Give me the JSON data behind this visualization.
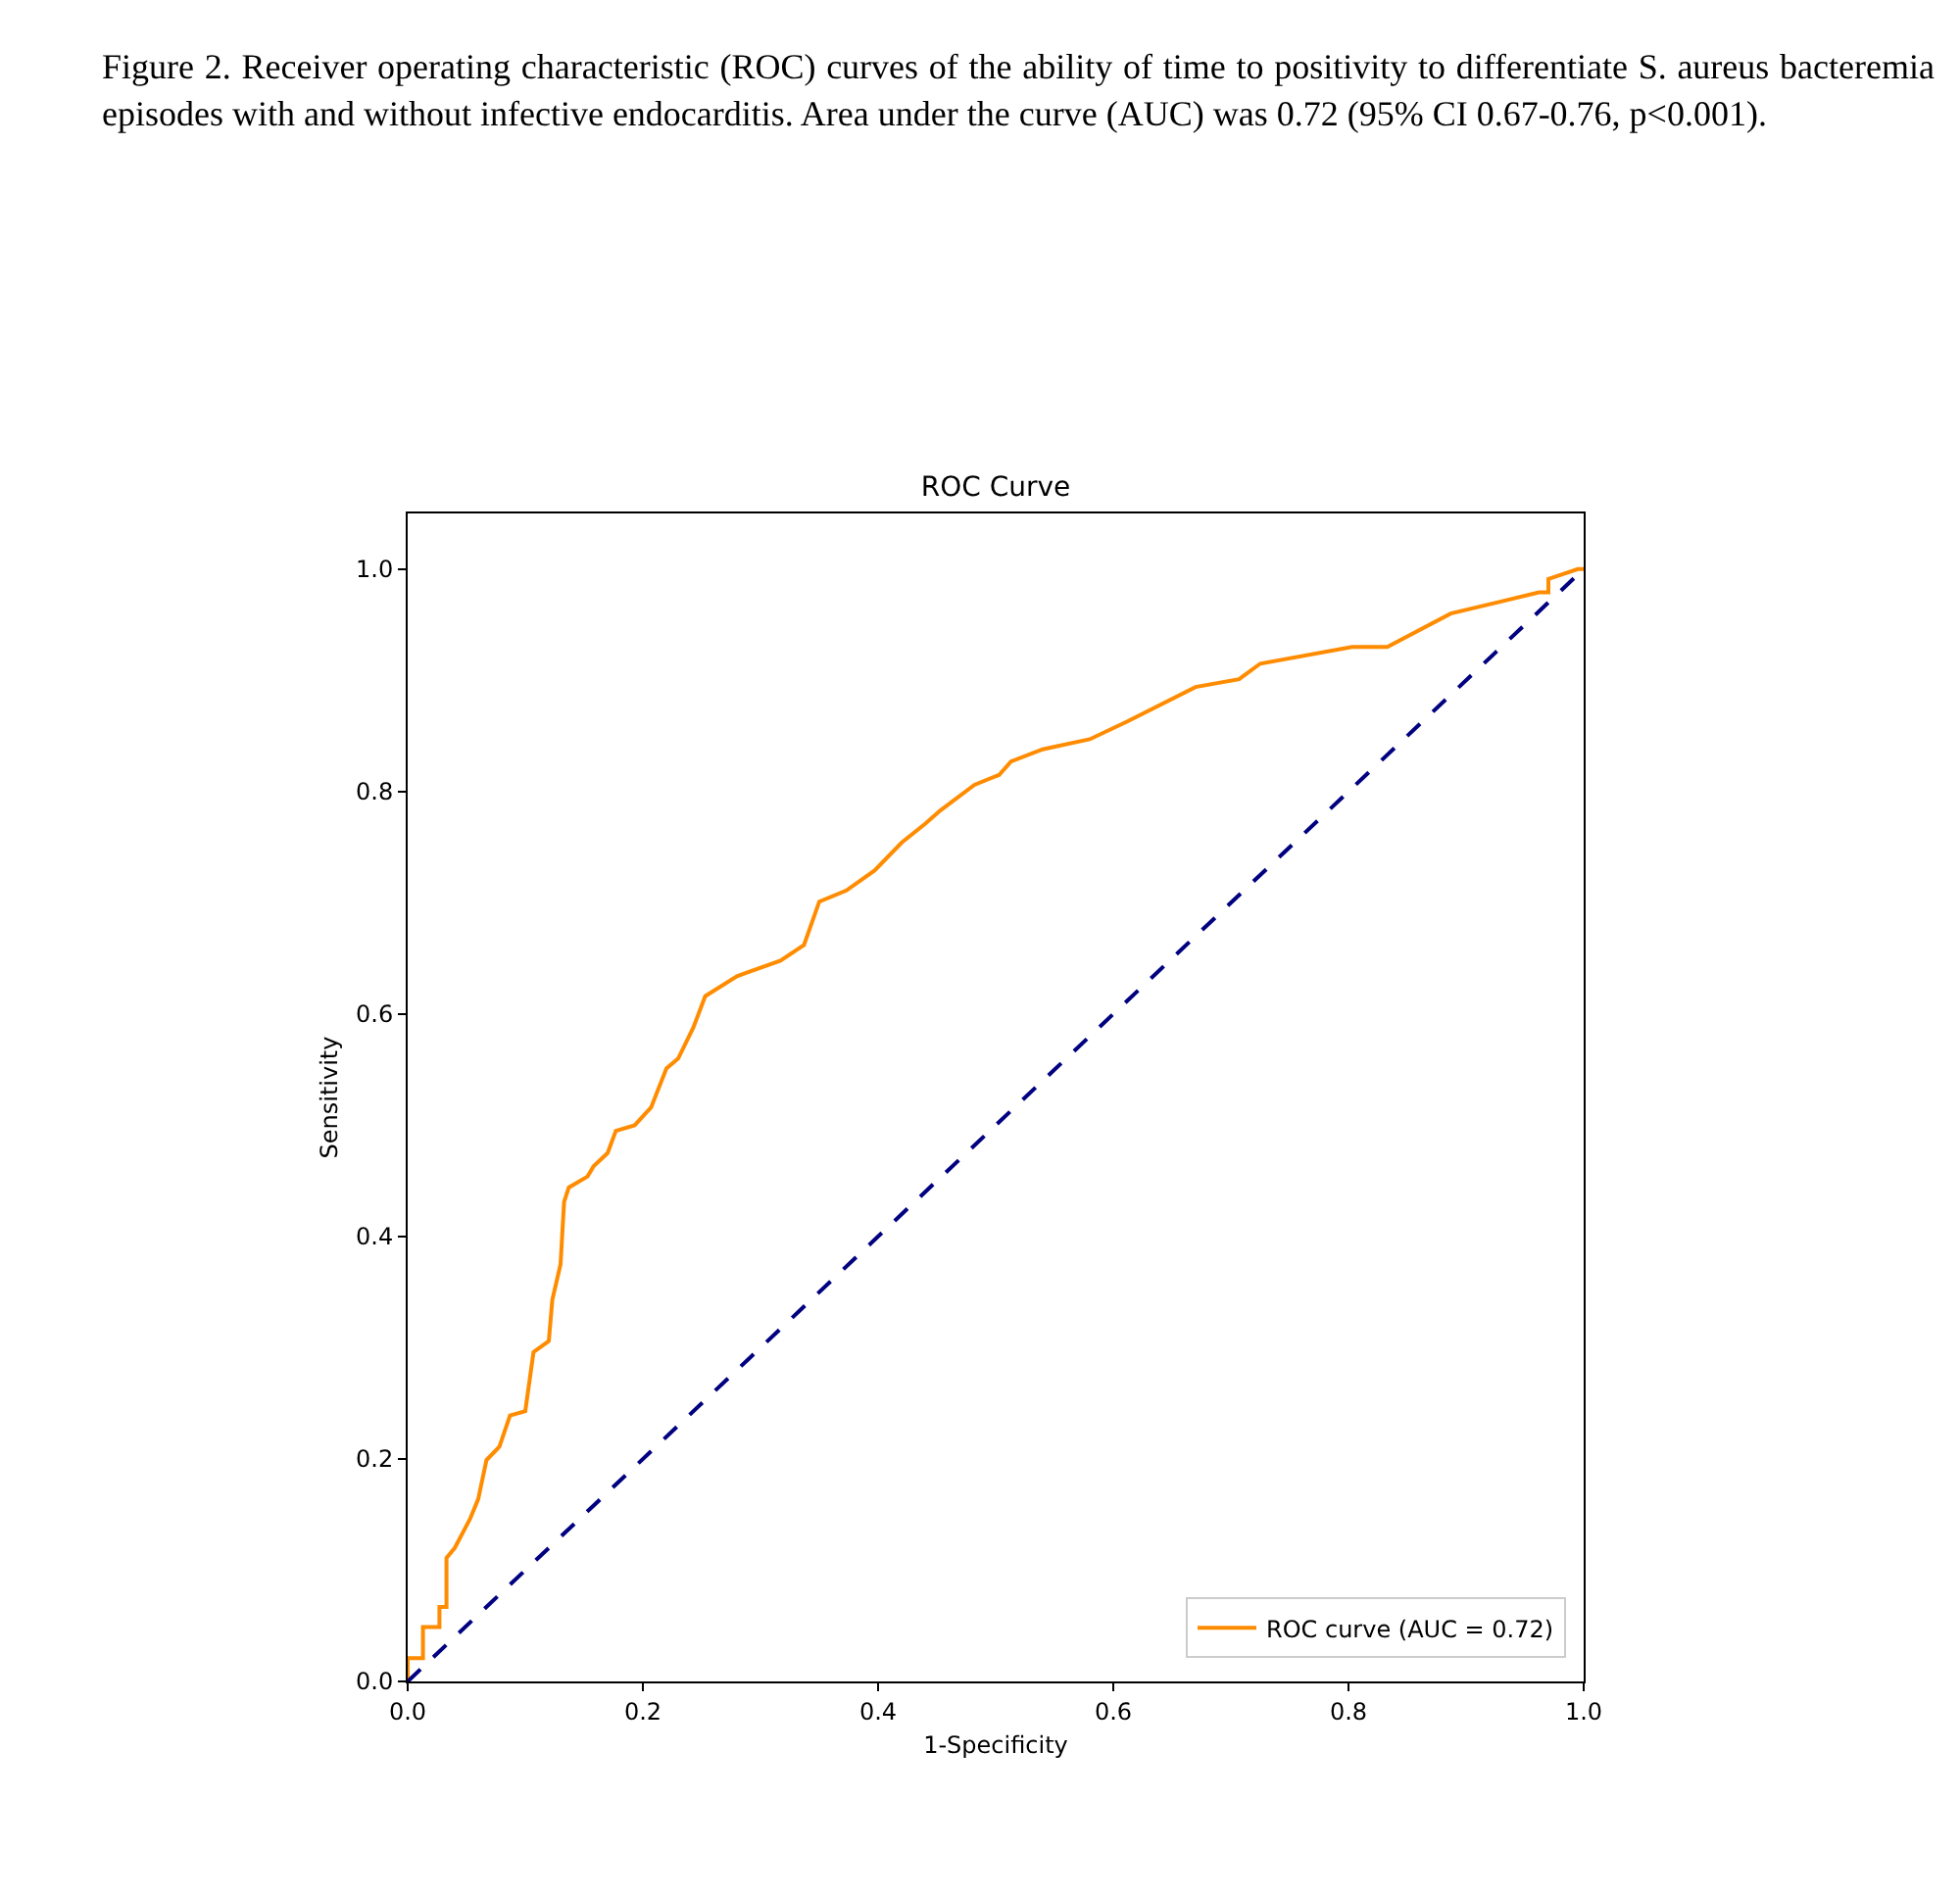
{
  "chart_data": {
    "type": "line",
    "title": "ROC Curve",
    "xlabel": "1-Specificity",
    "ylabel": "Sensitivity",
    "annotations": [
      "Figure 2. Receiver operating characteristic (ROC) curves of the ability of time to positivity to differentiate S. aureus bacteremia episodes with and without infective endocarditis. Area under the curve (AUC) was 0.72 (95% CI 0.67-0.76, p<0.001)."
    ],
    "xlim": [
      0,
      1
    ],
    "ylim": [
      0,
      1.05
    ],
    "xticks": [
      {
        "value": 0,
        "label": "0.0"
      },
      {
        "value": 0.2,
        "label": "0.2"
      },
      {
        "value": 0.4,
        "label": "0.4"
      },
      {
        "value": 0.6,
        "label": "0.6"
      },
      {
        "value": 0.8,
        "label": "0.8"
      },
      {
        "value": 1,
        "label": "1.0"
      }
    ],
    "yticks": [
      {
        "value": 0,
        "label": "0.0"
      },
      {
        "value": 0.2,
        "label": "0.2"
      },
      {
        "value": 0.4,
        "label": "0.4"
      },
      {
        "value": 0.6,
        "label": "0.6"
      },
      {
        "value": 0.8,
        "label": "0.8"
      },
      {
        "value": 1,
        "label": "1.0"
      }
    ],
    "grid": false,
    "legend": "bottom right",
    "marker": "none",
    "series": [
      {
        "name": "ROC curve (AUC = 0.72)",
        "color": "#ff8c00",
        "line_style": "solid",
        "x": [
          0,
          0,
          0.013,
          0.013,
          0.027,
          0.027,
          0.033,
          0.033,
          0.04,
          0.047,
          0.053,
          0.06,
          0.067,
          0.078,
          0.087,
          0.1,
          0.107,
          0.12,
          0.123,
          0.13,
          0.133,
          0.137,
          0.153,
          0.158,
          0.17,
          0.177,
          0.193,
          0.207,
          0.22,
          0.23,
          0.243,
          0.253,
          0.28,
          0.317,
          0.337,
          0.35,
          0.373,
          0.397,
          0.42,
          0.44,
          0.453,
          0.482,
          0.503,
          0.513,
          0.54,
          0.58,
          0.612,
          0.67,
          0.707,
          0.725,
          0.803,
          0.833,
          0.887,
          0.962,
          0.97,
          0.97,
          0.995,
          1
        ],
        "values": [
          0,
          0.021,
          0.021,
          0.049,
          0.049,
          0.067,
          0.067,
          0.111,
          0.12,
          0.134,
          0.146,
          0.164,
          0.199,
          0.211,
          0.239,
          0.243,
          0.296,
          0.306,
          0.343,
          0.375,
          0.431,
          0.444,
          0.454,
          0.463,
          0.475,
          0.495,
          0.5,
          0.516,
          0.551,
          0.56,
          0.588,
          0.616,
          0.634,
          0.648,
          0.662,
          0.701,
          0.711,
          0.729,
          0.754,
          0.771,
          0.783,
          0.806,
          0.815,
          0.827,
          0.838,
          0.847,
          0.863,
          0.894,
          0.901,
          0.915,
          0.93,
          0.93,
          0.96,
          0.979,
          0.979,
          0.991,
          1,
          1
        ]
      },
      {
        "color": "#000080",
        "line_style": "dashed",
        "x": [
          0,
          1
        ],
        "values": [
          0,
          1
        ]
      }
    ]
  }
}
